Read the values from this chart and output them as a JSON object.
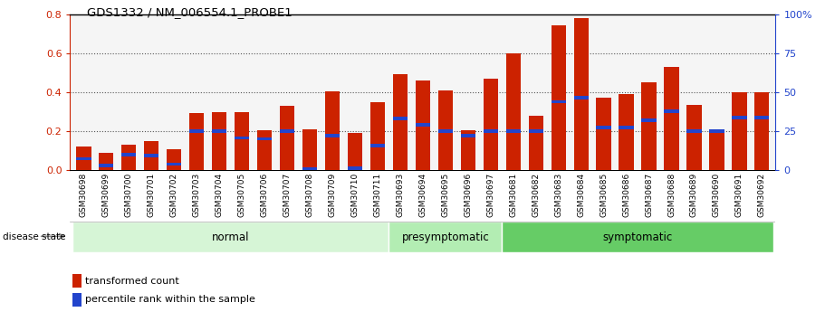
{
  "title": "GDS1332 / NM_006554.1_PROBE1",
  "samples": [
    "GSM30698",
    "GSM30699",
    "GSM30700",
    "GSM30701",
    "GSM30702",
    "GSM30703",
    "GSM30704",
    "GSM30705",
    "GSM30706",
    "GSM30707",
    "GSM30708",
    "GSM30709",
    "GSM30710",
    "GSM30711",
    "GSM30693",
    "GSM30694",
    "GSM30695",
    "GSM30696",
    "GSM30697",
    "GSM30681",
    "GSM30682",
    "GSM30683",
    "GSM30684",
    "GSM30685",
    "GSM30686",
    "GSM30687",
    "GSM30688",
    "GSM30689",
    "GSM30690",
    "GSM30691",
    "GSM30692"
  ],
  "transformed_count": [
    0.12,
    0.09,
    0.13,
    0.15,
    0.105,
    0.29,
    0.295,
    0.295,
    0.205,
    0.33,
    0.21,
    0.405,
    0.19,
    0.35,
    0.49,
    0.46,
    0.41,
    0.205,
    0.47,
    0.6,
    0.28,
    0.74,
    0.78,
    0.37,
    0.39,
    0.45,
    0.53,
    0.335,
    0.205,
    0.4,
    0.4
  ],
  "percentile_rank": [
    0.058,
    0.022,
    0.08,
    0.075,
    0.03,
    0.2,
    0.2,
    0.165,
    0.16,
    0.2,
    0.005,
    0.175,
    0.01,
    0.125,
    0.265,
    0.23,
    0.2,
    0.175,
    0.2,
    0.2,
    0.2,
    0.35,
    0.37,
    0.22,
    0.22,
    0.255,
    0.3,
    0.2,
    0.2,
    0.27,
    0.27
  ],
  "disease_groups": [
    {
      "label": "normal",
      "start": 0,
      "end": 14,
      "color": "#d6f5d6"
    },
    {
      "label": "presymptomatic",
      "start": 14,
      "end": 19,
      "color": "#b3edb3"
    },
    {
      "label": "symptomatic",
      "start": 19,
      "end": 31,
      "color": "#66cc66"
    }
  ],
  "bar_color": "#cc2200",
  "percentile_color": "#2244cc",
  "ylim_left": [
    0.0,
    0.8
  ],
  "ylim_right": [
    0,
    100
  ],
  "yticks_left": [
    0.0,
    0.2,
    0.4,
    0.6,
    0.8
  ],
  "yticks_right": [
    0,
    25,
    50,
    75,
    100
  ],
  "yticks_right_labels": [
    "0",
    "25",
    "50",
    "75",
    "100%"
  ]
}
